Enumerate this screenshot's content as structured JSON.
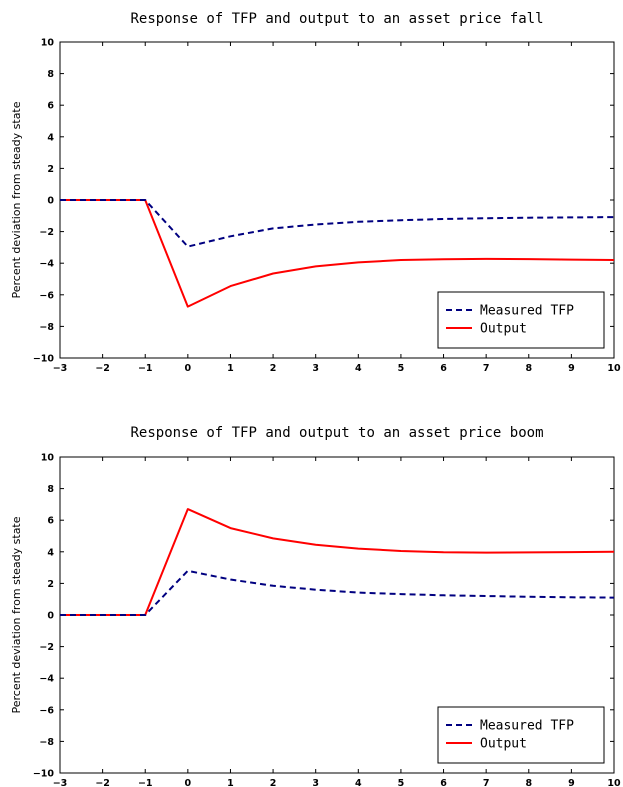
{
  "chart_data": [
    {
      "type": "line",
      "title": "Response of TFP and output to an asset price fall",
      "xlabel": "",
      "ylabel": "Percent deviation from steady state",
      "xlim": [
        -3,
        10
      ],
      "ylim": [
        -10,
        10
      ],
      "xticks": [
        -3,
        -2,
        -1,
        0,
        1,
        2,
        3,
        4,
        5,
        6,
        7,
        8,
        9,
        10
      ],
      "yticks": [
        -10,
        -8,
        -6,
        -4,
        -2,
        0,
        2,
        4,
        6,
        8,
        10
      ],
      "legend_position": "bottom-right",
      "grid": false,
      "x": [
        -3,
        -2,
        -1,
        0,
        1,
        2,
        3,
        4,
        5,
        6,
        7,
        8,
        9,
        10
      ],
      "series": [
        {
          "name": "Measured TFP",
          "style": "dashed",
          "color": "#000080",
          "values": [
            0,
            0,
            0,
            -2.95,
            -2.3,
            -1.8,
            -1.55,
            -1.38,
            -1.28,
            -1.2,
            -1.15,
            -1.12,
            -1.1,
            -1.08
          ]
        },
        {
          "name": "Output",
          "style": "solid",
          "color": "#ff0000",
          "values": [
            0,
            0,
            0,
            -6.75,
            -5.45,
            -4.65,
            -4.2,
            -3.95,
            -3.8,
            -3.75,
            -3.73,
            -3.74,
            -3.77,
            -3.8
          ]
        }
      ]
    },
    {
      "type": "line",
      "title": "Response of TFP and output to an asset price boom",
      "xlabel": "",
      "ylabel": "Percent deviation from steady state",
      "xlim": [
        -3,
        10
      ],
      "ylim": [
        -10,
        10
      ],
      "xticks": [
        -3,
        -2,
        -1,
        0,
        1,
        2,
        3,
        4,
        5,
        6,
        7,
        8,
        9,
        10
      ],
      "yticks": [
        -10,
        -8,
        -6,
        -4,
        -2,
        0,
        2,
        4,
        6,
        8,
        10
      ],
      "legend_position": "bottom-right",
      "grid": false,
      "x": [
        -3,
        -2,
        -1,
        0,
        1,
        2,
        3,
        4,
        5,
        6,
        7,
        8,
        9,
        10
      ],
      "series": [
        {
          "name": "Measured TFP",
          "style": "dashed",
          "color": "#000080",
          "values": [
            0,
            0,
            0,
            2.8,
            2.25,
            1.85,
            1.6,
            1.42,
            1.32,
            1.25,
            1.2,
            1.15,
            1.12,
            1.1
          ]
        },
        {
          "name": "Output",
          "style": "solid",
          "color": "#ff0000",
          "values": [
            0,
            0,
            0,
            6.7,
            5.5,
            4.85,
            4.45,
            4.2,
            4.05,
            3.97,
            3.95,
            3.96,
            3.98,
            4.0
          ]
        }
      ]
    }
  ]
}
